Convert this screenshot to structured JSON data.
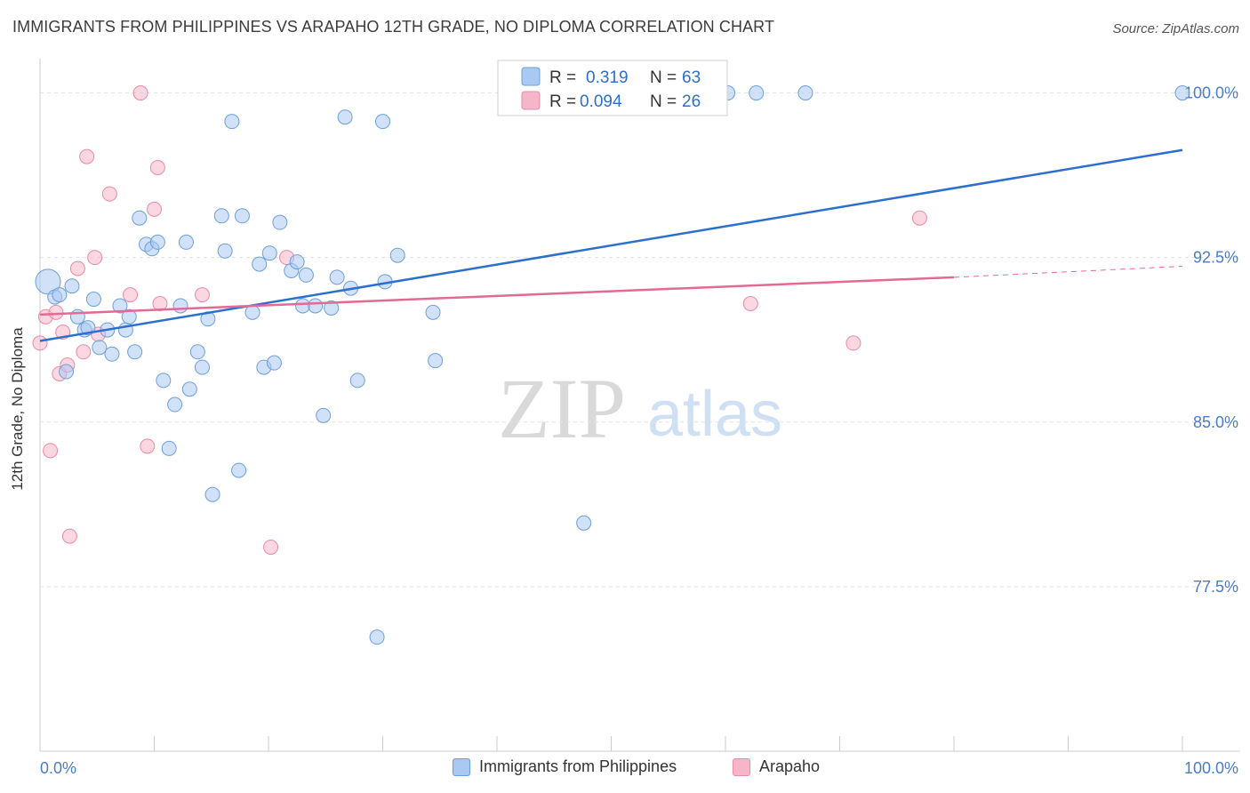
{
  "title": "IMMIGRANTS FROM PHILIPPINES VS ARAPAHO 12TH GRADE, NO DIPLOMA CORRELATION CHART",
  "source": "Source: ZipAtlas.com",
  "watermark": {
    "zip": "ZIP",
    "atlas": "atlas"
  },
  "colors": {
    "blue_fill": "#a9c8f2",
    "blue_stroke": "#6d9fdc",
    "blue_line": "#2b6fcf",
    "pink_fill": "#f6b6c9",
    "pink_stroke": "#e98aa8",
    "pink_line": "#e36a94",
    "tick_label": "#4a7cc9",
    "grid": "#e2e2e2"
  },
  "legend_top": [
    {
      "r_label": "R =",
      "r_value": "0.319",
      "n_label": "N =",
      "n_value": "63"
    },
    {
      "r_label": "R =",
      "r_value": "0.094",
      "n_label": "N =",
      "n_value": "26"
    }
  ],
  "legend_bottom": [
    "Immigrants from Philippines",
    "Arapaho"
  ],
  "chart_data": {
    "type": "scatter",
    "title": "IMMIGRANTS FROM PHILIPPINES VS ARAPAHO 12TH GRADE, NO DIPLOMA CORRELATION CHART",
    "xlabel": "",
    "ylabel": "12th Grade, No Diploma",
    "xlim": [
      0,
      100
    ],
    "ylim": [
      70.0,
      101.4
    ],
    "x_tick_labels": [
      "0.0%",
      "100.0%"
    ],
    "y_ticks": [
      77.5,
      85.0,
      92.5,
      100.0
    ],
    "y_tick_labels": [
      "77.5%",
      "85.0%",
      "92.5%",
      "100.0%"
    ],
    "grid": true,
    "legend_position": "top-center",
    "series": [
      {
        "name": "Immigrants from Philippines",
        "r": 0.319,
        "n": 63,
        "trend": {
          "x": [
            0,
            100
          ],
          "y": [
            88.7,
            97.4
          ]
        },
        "points": [
          [
            0.7,
            91.4
          ],
          [
            1.3,
            90.7
          ],
          [
            1.7,
            90.8
          ],
          [
            2.3,
            87.3
          ],
          [
            2.8,
            91.2
          ],
          [
            3.3,
            89.8
          ],
          [
            3.9,
            89.2
          ],
          [
            4.2,
            89.3
          ],
          [
            4.7,
            90.6
          ],
          [
            5.2,
            88.4
          ],
          [
            5.9,
            89.2
          ],
          [
            6.3,
            88.1
          ],
          [
            7.0,
            90.3
          ],
          [
            7.5,
            89.2
          ],
          [
            7.8,
            89.8
          ],
          [
            8.3,
            88.2
          ],
          [
            8.7,
            94.3
          ],
          [
            9.3,
            93.1
          ],
          [
            9.8,
            92.9
          ],
          [
            10.3,
            93.2
          ],
          [
            10.8,
            86.9
          ],
          [
            11.3,
            83.8
          ],
          [
            11.8,
            85.8
          ],
          [
            12.3,
            90.3
          ],
          [
            12.8,
            93.2
          ],
          [
            13.1,
            86.5
          ],
          [
            13.8,
            88.2
          ],
          [
            14.2,
            87.5
          ],
          [
            14.7,
            89.7
          ],
          [
            15.1,
            81.7
          ],
          [
            15.9,
            94.4
          ],
          [
            16.2,
            92.8
          ],
          [
            16.8,
            98.7
          ],
          [
            17.4,
            82.8
          ],
          [
            17.7,
            94.4
          ],
          [
            18.6,
            90.0
          ],
          [
            19.2,
            92.2
          ],
          [
            19.6,
            87.5
          ],
          [
            20.1,
            92.7
          ],
          [
            20.5,
            87.7
          ],
          [
            21.0,
            94.1
          ],
          [
            22.0,
            91.9
          ],
          [
            22.5,
            92.3
          ],
          [
            23.0,
            90.3
          ],
          [
            23.3,
            91.7
          ],
          [
            24.1,
            90.3
          ],
          [
            24.8,
            85.3
          ],
          [
            25.5,
            90.2
          ],
          [
            26.0,
            91.6
          ],
          [
            26.7,
            98.9
          ],
          [
            27.2,
            91.1
          ],
          [
            27.8,
            86.9
          ],
          [
            29.5,
            75.2
          ],
          [
            30.0,
            98.7
          ],
          [
            30.2,
            91.4
          ],
          [
            31.3,
            92.6
          ],
          [
            34.4,
            90.0
          ],
          [
            34.6,
            87.8
          ],
          [
            47.6,
            80.4
          ],
          [
            60.2,
            100.0
          ],
          [
            62.7,
            100.0
          ],
          [
            67.0,
            100.0
          ],
          [
            100.0,
            100.0
          ]
        ]
      },
      {
        "name": "Arapaho",
        "r": 0.094,
        "n": 26,
        "trend": {
          "x": [
            0,
            80
          ],
          "y": [
            89.9,
            91.6
          ]
        },
        "trend_extension": {
          "x": [
            80,
            100
          ],
          "y": [
            91.6,
            92.1
          ]
        },
        "points": [
          [
            0.0,
            88.6
          ],
          [
            0.5,
            89.8
          ],
          [
            0.9,
            83.7
          ],
          [
            1.4,
            90.0
          ],
          [
            1.7,
            87.2
          ],
          [
            2.0,
            89.1
          ],
          [
            2.4,
            87.6
          ],
          [
            2.6,
            79.8
          ],
          [
            3.3,
            92.0
          ],
          [
            3.8,
            88.2
          ],
          [
            4.1,
            97.1
          ],
          [
            4.8,
            92.5
          ],
          [
            5.1,
            89.0
          ],
          [
            6.1,
            95.4
          ],
          [
            7.9,
            90.8
          ],
          [
            8.8,
            100.0
          ],
          [
            9.4,
            83.9
          ],
          [
            10.0,
            94.7
          ],
          [
            10.3,
            96.6
          ],
          [
            10.5,
            90.4
          ],
          [
            14.2,
            90.8
          ],
          [
            20.2,
            79.3
          ],
          [
            21.6,
            92.5
          ],
          [
            62.2,
            90.4
          ],
          [
            71.2,
            88.6
          ],
          [
            77.0,
            94.3
          ]
        ]
      }
    ]
  }
}
